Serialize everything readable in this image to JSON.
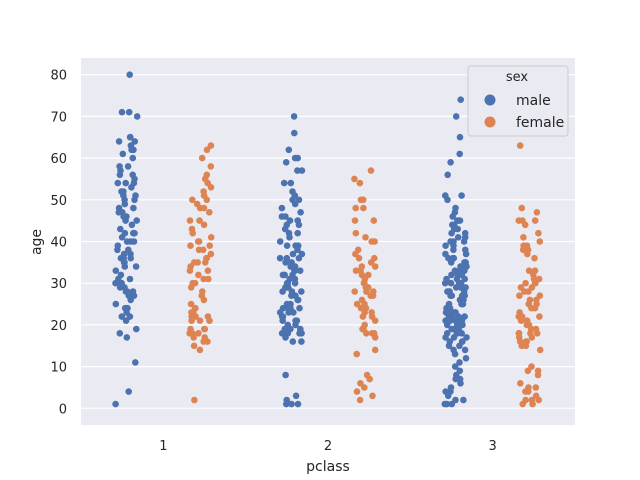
{
  "chart_data": {
    "type": "scatter",
    "subtype": "stripplot",
    "xlabel": "pclass",
    "ylabel": "age",
    "categories": [
      "1",
      "2",
      "3"
    ],
    "ylim": [
      -4,
      84
    ],
    "yticks": [
      0,
      10,
      20,
      30,
      40,
      50,
      60,
      70,
      80
    ],
    "grid": true,
    "legend": {
      "title": "sex",
      "placement": "top-right",
      "entries": [
        "male",
        "female"
      ]
    },
    "colors": {
      "male": "#4c72b0",
      "female": "#dd8452"
    },
    "series": [
      {
        "name": "male",
        "points": {
          "1": [
            80,
            71,
            71,
            70,
            65,
            65,
            64,
            64,
            63,
            62,
            62,
            61,
            60,
            58,
            58,
            57,
            56,
            56,
            55,
            54,
            54,
            54,
            53,
            52,
            52,
            51,
            51,
            50,
            50,
            49,
            48,
            48,
            47,
            47,
            46,
            46,
            45,
            45,
            44,
            43,
            42,
            42,
            42,
            41,
            40,
            40,
            40,
            39,
            38,
            38,
            37,
            37,
            36,
            36,
            36,
            35,
            35,
            34,
            34,
            33,
            32,
            31,
            31,
            30,
            30,
            30,
            29,
            29,
            28,
            28,
            28,
            27,
            27,
            26,
            25,
            24,
            24,
            23,
            22,
            22,
            21,
            19,
            18,
            17,
            11,
            4,
            1
          ],
          "2": [
            70,
            66,
            62,
            60,
            60,
            59,
            57,
            57,
            54,
            54,
            52,
            51,
            50,
            50,
            49,
            48,
            47,
            46,
            46,
            45,
            45,
            44,
            44,
            43,
            42,
            42,
            41,
            40,
            39,
            39,
            39,
            38,
            37,
            37,
            36,
            36,
            36,
            35,
            35,
            34,
            34,
            34,
            34,
            33,
            33,
            33,
            32,
            32,
            32,
            31,
            31,
            30,
            30,
            30,
            29,
            29,
            29,
            28,
            28,
            28,
            27,
            27,
            26,
            26,
            25,
            25,
            24,
            24,
            24,
            24,
            23,
            23,
            23,
            22,
            22,
            22,
            21,
            21,
            21,
            20,
            20,
            19,
            19,
            19,
            19,
            18,
            18,
            18,
            18,
            18,
            17,
            16,
            16,
            8,
            3,
            2,
            1,
            1,
            1
          ],
          "3": [
            74,
            70,
            65,
            61,
            59,
            56,
            51,
            51,
            50,
            48,
            47,
            46,
            45,
            45,
            45,
            44,
            44,
            43,
            43,
            42,
            42,
            41,
            41,
            40,
            40,
            40,
            39,
            39,
            38,
            38,
            37,
            37,
            36,
            36,
            36,
            35,
            35,
            35,
            34,
            34,
            34,
            33,
            33,
            33,
            32,
            32,
            32,
            32,
            31,
            31,
            31,
            30,
            30,
            30,
            30,
            29,
            29,
            29,
            29,
            28,
            28,
            28,
            28,
            27,
            27,
            27,
            27,
            26,
            26,
            26,
            26,
            25,
            25,
            25,
            25,
            24,
            24,
            24,
            24,
            23,
            23,
            23,
            23,
            22,
            22,
            22,
            22,
            21,
            21,
            21,
            21,
            20,
            20,
            20,
            20,
            19,
            19,
            19,
            19,
            18,
            18,
            18,
            18,
            17,
            17,
            17,
            16,
            16,
            16,
            15,
            15,
            14,
            14,
            13,
            12,
            11,
            10,
            9,
            8,
            7,
            7,
            6,
            5,
            4,
            4,
            3,
            2,
            2,
            1,
            1,
            1
          ]
        }
      },
      {
        "name": "female",
        "points": {
          "1": [
            63,
            62,
            60,
            58,
            56,
            55,
            54,
            53,
            52,
            51,
            50,
            50,
            49,
            48,
            48,
            47,
            45,
            45,
            44,
            43,
            42,
            41,
            40,
            40,
            39,
            39,
            38,
            38,
            37,
            36,
            36,
            35,
            35,
            35,
            34,
            33,
            33,
            32,
            31,
            31,
            30,
            30,
            29,
            28,
            27,
            26,
            25,
            24,
            24,
            23,
            23,
            22,
            22,
            22,
            21,
            21,
            21,
            19,
            19,
            19,
            18,
            18,
            18,
            17,
            17,
            16,
            16,
            15,
            14,
            2
          ],
          "2": [
            57,
            55,
            54,
            50,
            50,
            50,
            48,
            48,
            45,
            45,
            42,
            41,
            40,
            40,
            38,
            37,
            36,
            36,
            35,
            34,
            34,
            33,
            33,
            32,
            32,
            31,
            30,
            30,
            29,
            29,
            28,
            28,
            28,
            27,
            27,
            26,
            25,
            25,
            24,
            24,
            24,
            23,
            23,
            22,
            22,
            21,
            20,
            19,
            19,
            18,
            18,
            18,
            17,
            14,
            13,
            8,
            7,
            6,
            5,
            4,
            3,
            2
          ],
          "3": [
            63,
            48,
            47,
            45,
            45,
            45,
            44,
            42,
            41,
            40,
            39,
            39,
            38,
            38,
            37,
            36,
            33,
            33,
            32,
            31,
            31,
            30,
            30,
            30,
            29,
            29,
            28,
            28,
            27,
            27,
            26,
            26,
            25,
            25,
            24,
            24,
            23,
            22,
            22,
            22,
            21,
            21,
            21,
            20,
            20,
            19,
            19,
            18,
            18,
            18,
            18,
            17,
            17,
            16,
            16,
            16,
            15,
            15,
            14,
            10,
            9,
            9,
            8,
            6,
            5,
            5,
            4,
            4,
            3,
            2,
            2,
            2,
            1,
            1
          ]
        }
      }
    ]
  }
}
